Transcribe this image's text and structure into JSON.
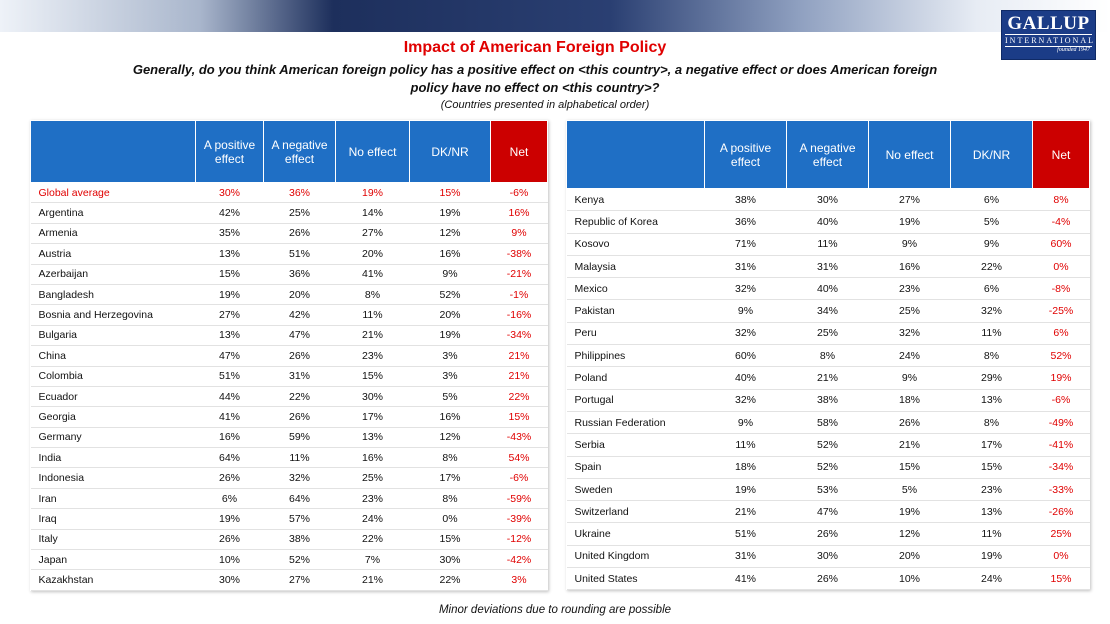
{
  "header": {
    "title": "Impact of American Foreign Policy",
    "question": "Generally, do you think American foreign policy has a positive effect on <this country>, a negative effect or does American foreign policy have no effect on <this country>?",
    "note": "(Countries presented in alphabetical order)",
    "logo": {
      "name": "GALLUP",
      "sub": "INTERNATIONAL",
      "founded": "founded 1947"
    }
  },
  "left_table": {
    "columns": [
      "A positive effect",
      "A negative effect",
      "No effect",
      "DK/NR",
      "Net"
    ],
    "rows": [
      [
        "Global average",
        "30%",
        "36%",
        "19%",
        "15%",
        "-6%"
      ],
      [
        "Argentina",
        "42%",
        "25%",
        "14%",
        "19%",
        "16%"
      ],
      [
        "Armenia",
        "35%",
        "26%",
        "27%",
        "12%",
        "9%"
      ],
      [
        "Austria",
        "13%",
        "51%",
        "20%",
        "16%",
        "-38%"
      ],
      [
        "Azerbaijan",
        "15%",
        "36%",
        "41%",
        "9%",
        "-21%"
      ],
      [
        "Bangladesh",
        "19%",
        "20%",
        "8%",
        "52%",
        "-1%"
      ],
      [
        "Bosnia and Herzegovina",
        "27%",
        "42%",
        "11%",
        "20%",
        "-16%"
      ],
      [
        "Bulgaria",
        "13%",
        "47%",
        "21%",
        "19%",
        "-34%"
      ],
      [
        "China",
        "47%",
        "26%",
        "23%",
        "3%",
        "21%"
      ],
      [
        "Colombia",
        "51%",
        "31%",
        "15%",
        "3%",
        "21%"
      ],
      [
        "Ecuador",
        "44%",
        "22%",
        "30%",
        "5%",
        "22%"
      ],
      [
        "Georgia",
        "41%",
        "26%",
        "17%",
        "16%",
        "15%"
      ],
      [
        "Germany",
        "16%",
        "59%",
        "13%",
        "12%",
        "-43%"
      ],
      [
        "India",
        "64%",
        "11%",
        "16%",
        "8%",
        "54%"
      ],
      [
        "Indonesia",
        "26%",
        "32%",
        "25%",
        "17%",
        "-6%"
      ],
      [
        "Iran",
        "6%",
        "64%",
        "23%",
        "8%",
        "-59%"
      ],
      [
        "Iraq",
        "19%",
        "57%",
        "24%",
        "0%",
        "-39%"
      ],
      [
        "Italy",
        "26%",
        "38%",
        "22%",
        "15%",
        "-12%"
      ],
      [
        "Japan",
        "10%",
        "52%",
        "7%",
        "30%",
        "-42%"
      ],
      [
        "Kazakhstan",
        "30%",
        "27%",
        "21%",
        "22%",
        "3%"
      ]
    ]
  },
  "right_table": {
    "columns": [
      "A positive effect",
      "A negative effect",
      "No effect",
      "DK/NR",
      "Net"
    ],
    "rows": [
      [
        "Kenya",
        "38%",
        "30%",
        "27%",
        "6%",
        "8%"
      ],
      [
        "Republic of Korea",
        "36%",
        "40%",
        "19%",
        "5%",
        "-4%"
      ],
      [
        "Kosovo",
        "71%",
        "11%",
        "9%",
        "9%",
        "60%"
      ],
      [
        "Malaysia",
        "31%",
        "31%",
        "16%",
        "22%",
        "0%"
      ],
      [
        "Mexico",
        "32%",
        "40%",
        "23%",
        "6%",
        "-8%"
      ],
      [
        "Pakistan",
        "9%",
        "34%",
        "25%",
        "32%",
        "-25%"
      ],
      [
        "Peru",
        "32%",
        "25%",
        "32%",
        "11%",
        "6%"
      ],
      [
        "Philippines",
        "60%",
        "8%",
        "24%",
        "8%",
        "52%"
      ],
      [
        "Poland",
        "40%",
        "21%",
        "9%",
        "29%",
        "19%"
      ],
      [
        "Portugal",
        "32%",
        "38%",
        "18%",
        "13%",
        "-6%"
      ],
      [
        "Russian Federation",
        "9%",
        "58%",
        "26%",
        "8%",
        "-49%"
      ],
      [
        "Serbia",
        "11%",
        "52%",
        "21%",
        "17%",
        "-41%"
      ],
      [
        "Spain",
        "18%",
        "52%",
        "15%",
        "15%",
        "-34%"
      ],
      [
        "Sweden",
        "19%",
        "53%",
        "5%",
        "23%",
        "-33%"
      ],
      [
        "Switzerland",
        "21%",
        "47%",
        "19%",
        "13%",
        "-26%"
      ],
      [
        "Ukraine",
        "51%",
        "26%",
        "12%",
        "11%",
        "25%"
      ],
      [
        "United Kingdom",
        "31%",
        "30%",
        "20%",
        "19%",
        "0%"
      ],
      [
        "United States",
        "41%",
        "26%",
        "10%",
        "24%",
        "15%"
      ]
    ]
  },
  "footer": "Minor deviations due to rounding are possible"
}
